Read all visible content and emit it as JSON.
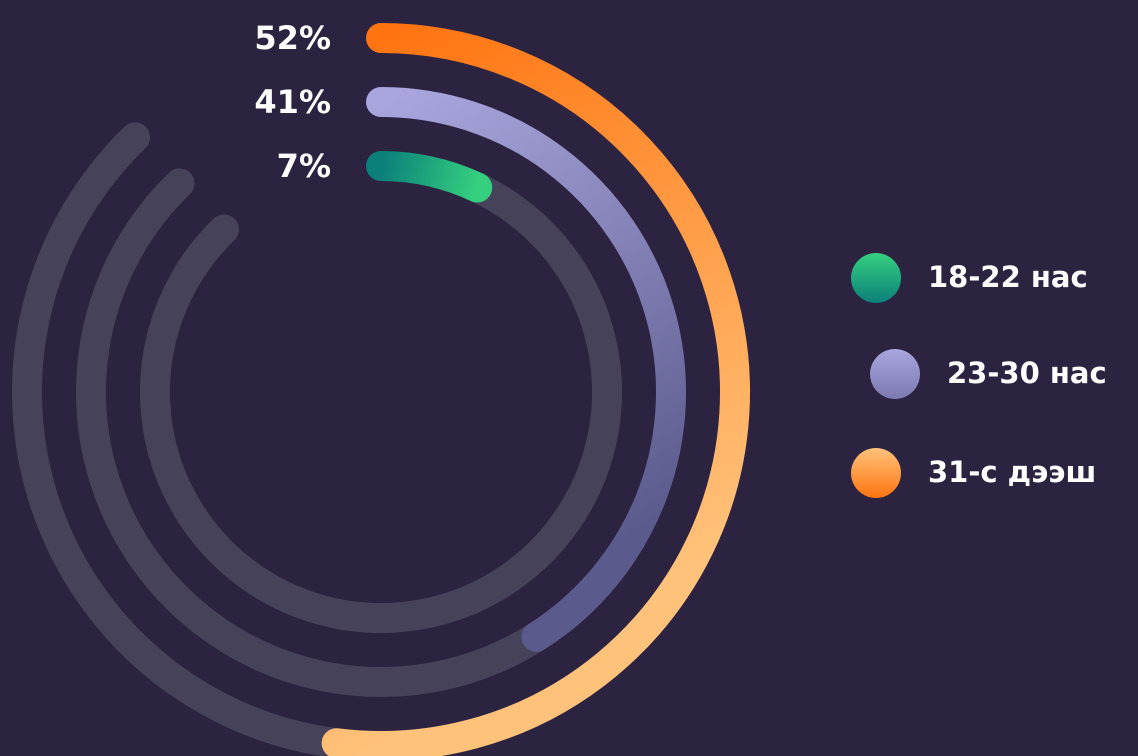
{
  "chart_data": {
    "type": "radial_bar",
    "categories": [
      "18-22 нас",
      "23-30 нас",
      "31-с дээш"
    ],
    "values": [
      7,
      41,
      52
    ],
    "value_labels": [
      "7%",
      "41%",
      "52%"
    ],
    "colors": [
      [
        "#0b7f7a",
        "#35d07f"
      ],
      [
        "#a9a6dd",
        "#5b5a8c"
      ],
      [
        "#ff7410",
        "#ffc27a"
      ]
    ],
    "track_color": "#454259",
    "background": "#2c2340"
  }
}
